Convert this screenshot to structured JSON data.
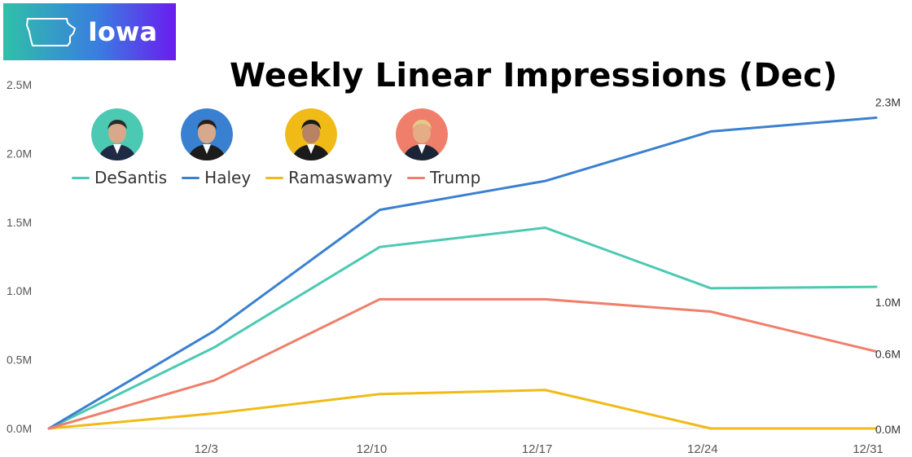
{
  "header": {
    "state_label": "Iowa"
  },
  "chart_data": {
    "type": "line",
    "title": "Weekly Linear Impressions (Dec)",
    "xlabel": "",
    "ylabel": "",
    "x": [
      "",
      "12/3",
      "12/10",
      "12/17",
      "12/24",
      "12/31"
    ],
    "yticks": [
      "0.0M",
      "0.5M",
      "1.0M",
      "1.5M",
      "2.0M",
      "2.5M"
    ],
    "ylim": [
      0,
      2.5
    ],
    "grid": false,
    "legend_position": "top-left",
    "series": [
      {
        "name": "DeSantis",
        "color": "#4cc9b3",
        "values": [
          0,
          0.59,
          1.32,
          1.46,
          1.02,
          1.03
        ]
      },
      {
        "name": "Haley",
        "color": "#3a80d0",
        "values": [
          0,
          0.71,
          1.59,
          1.8,
          2.16,
          2.26
        ]
      },
      {
        "name": "Ramaswamy",
        "color": "#f0bb17",
        "values": [
          0,
          0.11,
          0.25,
          0.28,
          0.0,
          0.0
        ]
      },
      {
        "name": "Trump",
        "color": "#ef7f6b",
        "values": [
          0,
          0.35,
          0.94,
          0.94,
          0.85,
          0.56
        ]
      }
    ],
    "end_labels": [
      {
        "series": "Haley",
        "text": "2.3M"
      },
      {
        "series": "DeSantis",
        "text": "1.0M"
      },
      {
        "series": "Trump",
        "text": "0.6M"
      },
      {
        "series": "Ramaswamy",
        "text": "0.0M"
      }
    ]
  },
  "avatars": [
    {
      "name": "DeSantis",
      "bg": "#4cc9b3",
      "suit": "#1f2a44",
      "skin": "#d8a88a",
      "hair": "#2a2a2a"
    },
    {
      "name": "Haley",
      "bg": "#3a80d0",
      "suit": "#1c1c1c",
      "skin": "#d7a98a",
      "hair": "#2b1e18"
    },
    {
      "name": "Ramaswamy",
      "bg": "#f0bb17",
      "suit": "#1a1a1a",
      "skin": "#b78364",
      "hair": "#1a1a1a"
    },
    {
      "name": "Trump",
      "bg": "#ef7f6b",
      "suit": "#1b2436",
      "skin": "#e5ad85",
      "hair": "#e6c98a"
    }
  ]
}
